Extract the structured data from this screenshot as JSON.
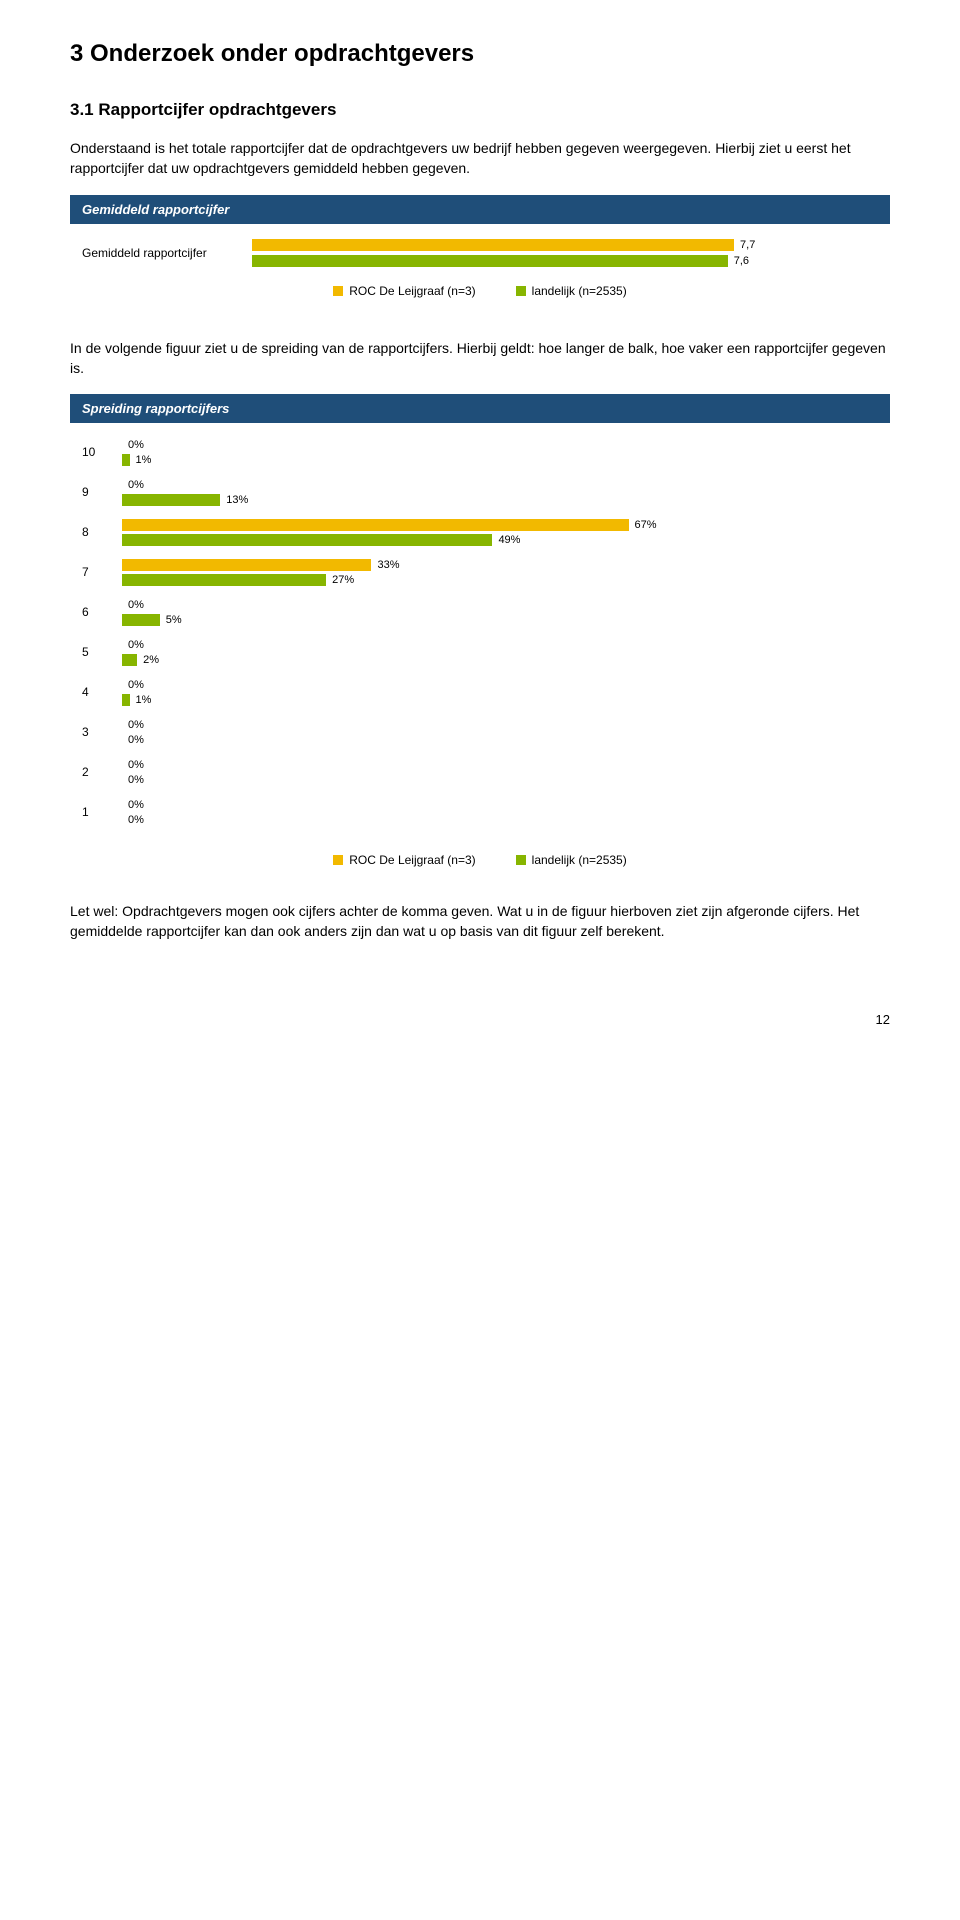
{
  "colors": {
    "header_bar": "#1f4e79",
    "series_a": "#f2b900",
    "series_b": "#87b500",
    "text": "#000000"
  },
  "heading": "3 Onderzoek onder opdrachtgevers",
  "subheading": "3.1 Rapportcijfer opdrachtgevers",
  "para1": "Onderstaand is het totale rapportcijfer dat de opdrachtgevers uw bedrijf hebben gegeven weergegeven. Hierbij ziet u eerst het rapportcijfer dat uw opdrachtgevers gemiddeld hebben gegeven.",
  "chart1": {
    "title": "Gemiddeld rapportcijfer",
    "row_label": "Gemiddeld rapportcijfer",
    "a_value": "7,7",
    "b_value": "7,6",
    "a_pct": 77,
    "b_pct": 76,
    "legend_a": "ROC De Leijgraaf (n=3)",
    "legend_b": "landelijk (n=2535)"
  },
  "para2": "In de volgende figuur ziet u de spreiding van de rapportcijfers. Hierbij geldt: hoe langer de balk, hoe vaker een rapportcijfer gegeven is.",
  "chart2": {
    "title": "Spreiding rapportcijfers",
    "rows": [
      {
        "label": "10",
        "a": 0,
        "b": 1
      },
      {
        "label": "9",
        "a": 0,
        "b": 13
      },
      {
        "label": "8",
        "a": 67,
        "b": 49
      },
      {
        "label": "7",
        "a": 33,
        "b": 27
      },
      {
        "label": "6",
        "a": 0,
        "b": 5
      },
      {
        "label": "5",
        "a": 0,
        "b": 2
      },
      {
        "label": "4",
        "a": 0,
        "b": 1
      },
      {
        "label": "3",
        "a": 0,
        "b": 0
      },
      {
        "label": "2",
        "a": 0,
        "b": 0
      },
      {
        "label": "1",
        "a": 0,
        "b": 0
      }
    ],
    "legend_a": "ROC De Leijgraaf (n=3)",
    "legend_b": "landelijk (n=2535)",
    "max_scale": 100
  },
  "para3": "Let wel: Opdrachtgevers mogen ook cijfers achter de komma geven. Wat u in de figuur hierboven ziet zijn afgeronde cijfers. Het gemiddelde rapportcijfer kan dan ook anders zijn dan wat u op basis van dit figuur zelf berekent.",
  "page_number": "12"
}
